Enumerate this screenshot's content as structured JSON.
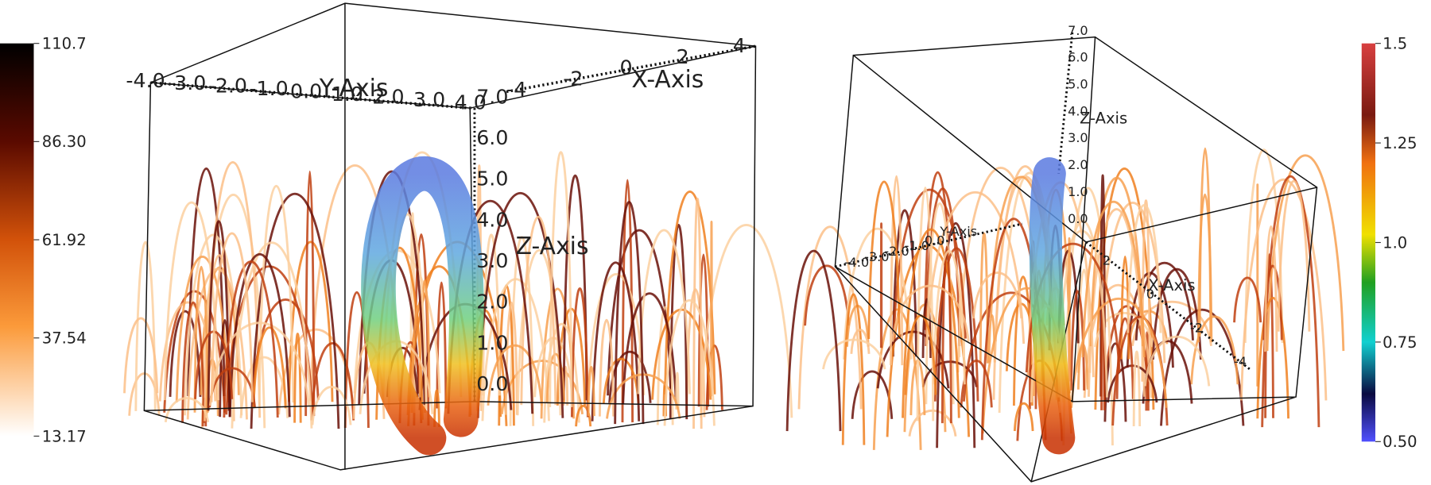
{
  "left_view": {
    "colorbar": {
      "ticks": [
        "110.7",
        "86.30",
        "61.92",
        "37.54",
        "13.17"
      ]
    },
    "axes": {
      "x_axis_label": "X-Axis",
      "y_axis_label": "Y-Axis",
      "z_axis_label": "Z-Axis",
      "x_ticks": [
        "-4",
        "-2",
        "0",
        "2",
        "4"
      ],
      "y_ticks": [
        "-4.0",
        "-3.0",
        "-2.0",
        "-1.0",
        "0.0",
        "1.0",
        "2.0",
        "3.0",
        "4.0"
      ],
      "z_ticks": [
        "0.0",
        "1.0",
        "2.0",
        "3.0",
        "4.0",
        "5.0",
        "6.0",
        "7.0"
      ]
    }
  },
  "right_view": {
    "colorbar": {
      "ticks": [
        "1.5",
        "1.25",
        "1.0",
        "0.75",
        "0.50"
      ]
    },
    "axes": {
      "x_axis_label": "X-Axis",
      "y_axis_label": "Y-Axis",
      "z_axis_label": "Z-Axis",
      "x_ticks": [
        "2",
        "0",
        "-2",
        "-4"
      ],
      "y_ticks": [
        "-4.0",
        "-3.0",
        "-2.0",
        "-1.0",
        "0.0"
      ],
      "z_ticks": [
        "0.0",
        "1.0",
        "2.0",
        "3.0",
        "4.0",
        "5.0",
        "6.0",
        "7.0"
      ]
    }
  }
}
